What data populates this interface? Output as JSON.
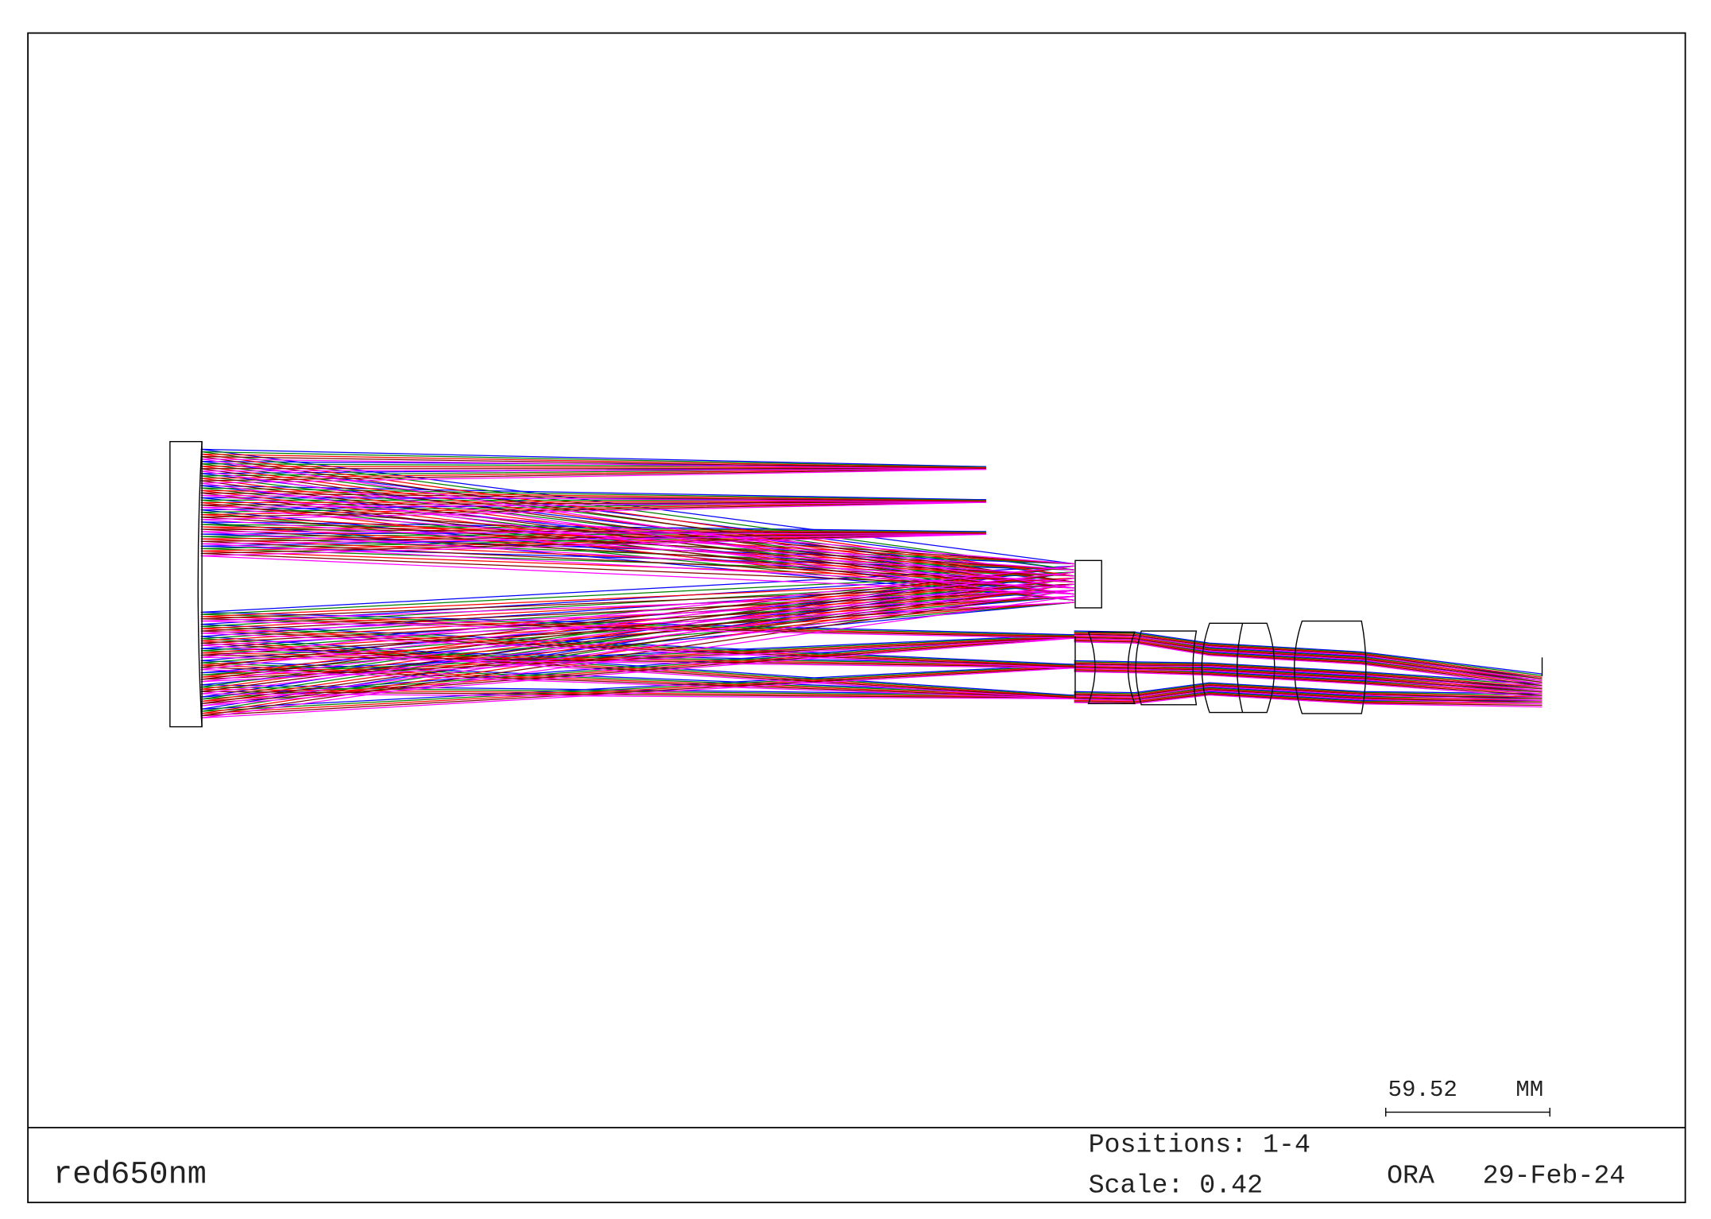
{
  "scale_bar": {
    "length": "59.52",
    "unit": "MM"
  },
  "title_block": {
    "name": "red650nm",
    "positions": "Positions: 1-4",
    "scale": "Scale: 0.42",
    "program": "ORA",
    "date": "29-Feb-24"
  }
}
